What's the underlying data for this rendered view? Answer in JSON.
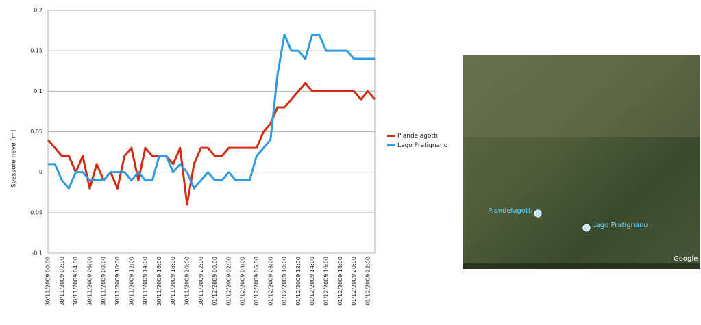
{
  "chart_data": {
    "type": "line",
    "y_label": "Spessore neve [m]",
    "categories": [
      "30/11/2009 00:00",
      null,
      "30/11/2009 02:00",
      null,
      "30/11/2009 04:00",
      null,
      "30/11/2009 06:00",
      null,
      "30/11/2009 08:00",
      null,
      "30/11/2009 10:00",
      null,
      "30/11/2009 12:00",
      null,
      "30/11/2009 14:00",
      null,
      "30/11/2009 16:00",
      null,
      "30/11/2009 18:00",
      null,
      "30/11/2009 20:00",
      null,
      "30/11/2009 22:00",
      null,
      "01/12/2009 00:00",
      null,
      "01/12/2009 02:00",
      null,
      "01/12/2009 04:00",
      null,
      "01/12/2009 06:00",
      null,
      "01/12/2009 08:00",
      null,
      "01/12/2009 10:00",
      null,
      "01/12/2009 12:00",
      null,
      "01/12/2009 14:00",
      null,
      "01/12/2009 16:00",
      null,
      "01/12/2009 18:00",
      null,
      "01/12/2009 20:00",
      null,
      "01/12/2009 22:00",
      null
    ],
    "series": [
      {
        "name": "Piandelagotti",
        "color": "#d42a10",
        "values": [
          0.04,
          0.03,
          0.02,
          0.02,
          0,
          0.02,
          -0.02,
          0.01,
          -0.01,
          0,
          -0.02,
          0.02,
          0.03,
          -0.01,
          0.03,
          0.02,
          0.02,
          0.02,
          0.01,
          0.03,
          -0.04,
          0.01,
          0.03,
          0.03,
          0.02,
          0.02,
          0.03,
          0.03,
          0.03,
          0.03,
          0.03,
          0.05,
          0.06,
          0.08,
          0.08,
          0.09,
          0.1,
          0.11,
          0.1,
          0.1,
          0.1,
          0.1,
          0.1,
          0.1,
          0.1,
          0.09,
          0.1,
          0.09
        ]
      },
      {
        "name": "Lago Pratignano",
        "color": "#2b9be2",
        "values": [
          0.01,
          0.01,
          -0.01,
          -0.02,
          0,
          0,
          -0.01,
          -0.01,
          -0.01,
          0,
          0,
          0,
          -0.01,
          0,
          -0.01,
          -0.01,
          0.02,
          0.02,
          0,
          0.01,
          0,
          -0.02,
          -0.01,
          0,
          -0.01,
          -0.01,
          0,
          -0.01,
          -0.01,
          -0.01,
          0.02,
          0.03,
          0.04,
          0.12,
          0.17,
          0.15,
          0.15,
          0.14,
          0.17,
          0.17,
          0.15,
          0.15,
          0.15,
          0.15,
          0.14,
          0.14,
          0.14,
          0.14
        ]
      }
    ],
    "ylim": [
      -0.1,
      0.2
    ],
    "yticks": [
      -0.1,
      -0.05,
      0,
      0.05,
      0.1,
      0.15,
      0.2
    ],
    "grid": true,
    "legend": "right"
  },
  "map": {
    "labels": [
      "Piandelagotti",
      "Lago Pratignano"
    ],
    "brand": "Google"
  }
}
